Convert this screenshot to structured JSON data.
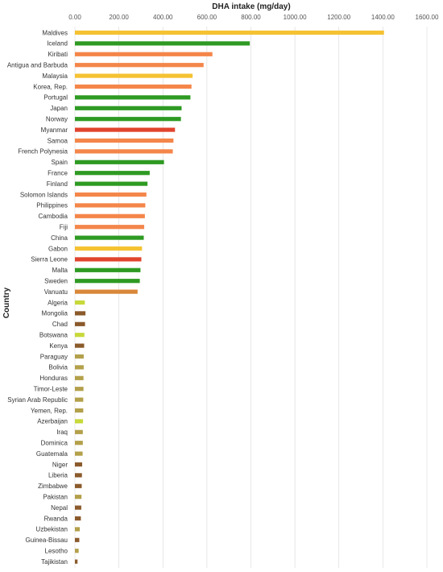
{
  "chart_data": {
    "type": "bar",
    "orientation": "horizontal",
    "title": "DHA intake (mg/day)",
    "xlabel": "",
    "ylabel": "Country",
    "xlim": [
      0,
      1600
    ],
    "x_ticks": [
      "0.00",
      "200.00",
      "400.00",
      "600.00",
      "800.00",
      "1000.00",
      "1200.00",
      "1400.00",
      "1600.00"
    ],
    "axis_position": "top",
    "grid": true,
    "bars": [
      {
        "category": "Maldives",
        "value": 1405,
        "color": "#f5c232"
      },
      {
        "category": "Iceland",
        "value": 795,
        "color": "#2e9a22"
      },
      {
        "category": "Kiribati",
        "value": 625,
        "color": "#f4864a"
      },
      {
        "category": "Antigua and Barbuda",
        "value": 585,
        "color": "#f4864a"
      },
      {
        "category": "Malaysia",
        "value": 535,
        "color": "#f5c232"
      },
      {
        "category": "Korea, Rep.",
        "value": 530,
        "color": "#f4864a"
      },
      {
        "category": "Portugal",
        "value": 525,
        "color": "#2e9a22"
      },
      {
        "category": "Japan",
        "value": 485,
        "color": "#2e9a22"
      },
      {
        "category": "Norway",
        "value": 482,
        "color": "#2e9a22"
      },
      {
        "category": "Myanmar",
        "value": 455,
        "color": "#e0442d"
      },
      {
        "category": "Samoa",
        "value": 448,
        "color": "#f4864a"
      },
      {
        "category": "French Polynesia",
        "value": 445,
        "color": "#f4864a"
      },
      {
        "category": "Spain",
        "value": 405,
        "color": "#2e9a22"
      },
      {
        "category": "France",
        "value": 340,
        "color": "#2e9a22"
      },
      {
        "category": "Finland",
        "value": 330,
        "color": "#2e9a22"
      },
      {
        "category": "Solomon Islands",
        "value": 325,
        "color": "#f4864a"
      },
      {
        "category": "Philippines",
        "value": 320,
        "color": "#f4864a"
      },
      {
        "category": "Cambodia",
        "value": 318,
        "color": "#f4864a"
      },
      {
        "category": "Fiji",
        "value": 315,
        "color": "#f4864a"
      },
      {
        "category": "China",
        "value": 313,
        "color": "#2e9a22"
      },
      {
        "category": "Gabon",
        "value": 305,
        "color": "#f5c232"
      },
      {
        "category": "Sierra Leone",
        "value": 302,
        "color": "#e0442d"
      },
      {
        "category": "Malta",
        "value": 298,
        "color": "#2e9a22"
      },
      {
        "category": "Sweden",
        "value": 295,
        "color": "#2e9a22"
      },
      {
        "category": "Vanuatu",
        "value": 285,
        "color": "#d9873a"
      },
      {
        "category": "Algeria",
        "value": 45,
        "color": "#c7d93a"
      },
      {
        "category": "Mongolia",
        "value": 48,
        "color": "#8b5a2b"
      },
      {
        "category": "Chad",
        "value": 46,
        "color": "#8b5a2b"
      },
      {
        "category": "Botswana",
        "value": 43,
        "color": "#c7d93a"
      },
      {
        "category": "Kenya",
        "value": 42,
        "color": "#8b5a2b"
      },
      {
        "category": "Paraguay",
        "value": 40,
        "color": "#b3a04a"
      },
      {
        "category": "Bolivia",
        "value": 40,
        "color": "#b3a04a"
      },
      {
        "category": "Honduras",
        "value": 39,
        "color": "#b3a04a"
      },
      {
        "category": "Timor-Leste",
        "value": 39,
        "color": "#b3a04a"
      },
      {
        "category": "Syrian Arab Republic",
        "value": 38,
        "color": "#b3a04a"
      },
      {
        "category": "Yemen, Rep.",
        "value": 38,
        "color": "#b3a04a"
      },
      {
        "category": "Azerbaijan",
        "value": 37,
        "color": "#c7d93a"
      },
      {
        "category": "Iraq",
        "value": 36,
        "color": "#b3a04a"
      },
      {
        "category": "Dominica",
        "value": 36,
        "color": "#b3a04a"
      },
      {
        "category": "Guatemala",
        "value": 35,
        "color": "#b3a04a"
      },
      {
        "category": "Niger",
        "value": 33,
        "color": "#8b5a2b"
      },
      {
        "category": "Liberia",
        "value": 32,
        "color": "#8b5a2b"
      },
      {
        "category": "Zimbabwe",
        "value": 31,
        "color": "#8b5a2b"
      },
      {
        "category": "Pakistan",
        "value": 30,
        "color": "#b3a04a"
      },
      {
        "category": "Nepal",
        "value": 29,
        "color": "#8b5a2b"
      },
      {
        "category": "Rwanda",
        "value": 27,
        "color": "#8b5a2b"
      },
      {
        "category": "Uzbekistan",
        "value": 22,
        "color": "#b3a04a"
      },
      {
        "category": "Guinea-Bissau",
        "value": 20,
        "color": "#8b5a2b"
      },
      {
        "category": "Lesotho",
        "value": 17,
        "color": "#b3a04a"
      },
      {
        "category": "Tajikistan",
        "value": 12,
        "color": "#8b5a2b"
      }
    ]
  }
}
